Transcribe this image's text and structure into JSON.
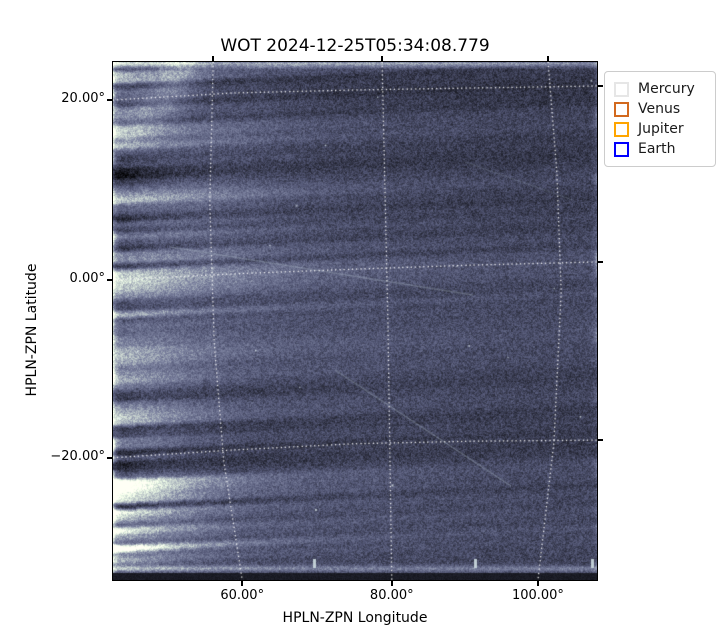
{
  "title": "WOT 2024-12-25T05:34:08.779",
  "chart_data": {
    "type": "heatmap",
    "title": "WOT 2024-12-25T05:34:08.779",
    "xlabel": "HPLN-ZPN Longitude",
    "ylabel": "HPLN-ZPN Latitude",
    "x_tick_labels": [
      "60.00°",
      "80.00°",
      "100.00°"
    ],
    "y_tick_labels": [
      "20.00°",
      "0.00°",
      "−20.00°"
    ],
    "xlim_deg_estimate": [
      43,
      108
    ],
    "ylim_deg_estimate": [
      -33.5,
      24
    ],
    "grid": {
      "color": "#ffffff",
      "style": "dotted",
      "constant_longitude_lines": [
        {
          "value_deg": 60,
          "points": [
            [
              0.207,
              0
            ],
            [
              0.2,
              0.27
            ],
            [
              0.209,
              0.541
            ],
            [
              0.229,
              0.772
            ],
            [
              0.267,
              1
            ]
          ]
        },
        {
          "value_deg": 80,
          "points": [
            [
              0.556,
              0
            ],
            [
              0.562,
              0.251
            ],
            [
              0.568,
              0.502
            ],
            [
              0.572,
              0.753
            ],
            [
              0.576,
              1
            ]
          ]
        },
        {
          "value_deg": 100,
          "points": [
            [
              0.899,
              0
            ],
            [
              0.917,
              0.212
            ],
            [
              0.926,
              0.444
            ],
            [
              0.911,
              0.734
            ],
            [
              0.878,
              1
            ]
          ]
        }
      ],
      "constant_latitude_lines": [
        {
          "value_deg": 20,
          "points": [
            [
              0,
              0.0734
            ],
            [
              0.248,
              0.0598
            ],
            [
              0.496,
              0.0541
            ],
            [
              0.744,
              0.0502
            ],
            [
              1,
              0.0463
            ]
          ]
        },
        {
          "value_deg": 0,
          "points": [
            [
              0,
              0.421
            ],
            [
              0.248,
              0.409
            ],
            [
              0.496,
              0.4
            ],
            [
              0.744,
              0.392
            ],
            [
              1,
              0.386
            ]
          ]
        },
        {
          "value_deg": -20,
          "points": [
            [
              0,
              0.764
            ],
            [
              0.248,
              0.749
            ],
            [
              0.496,
              0.737
            ],
            [
              0.744,
              0.732
            ],
            [
              1,
              0.73
            ]
          ]
        }
      ]
    },
    "ticks": {
      "bottom_x": [
        0.267,
        0.576,
        0.878
      ],
      "top_x": [
        0.207,
        0.556,
        0.899
      ],
      "left_y": [
        0.0734,
        0.421,
        0.764
      ],
      "right_y": [
        0.0463,
        0.386,
        0.73
      ]
    },
    "image": {
      "description": "Noisy dark slate-blue heliospheric imager frame (bone-like colormap) with white dotted curved HPLN-ZPN coordinate grid",
      "base_color": "#3f4259",
      "midtone_color": "#7d87a0",
      "highlight_color": "#d9e6e3",
      "features": [
        "bright arc in top-left corner",
        "bright haze and horizontal streaks along left side",
        "strong dark/bright streak bands in bottom-left quadrant",
        "thin bright band along top edge",
        "thin bright line above a dark band at bottom edge",
        "faint diagonal streaks through center",
        "scattered bright specks"
      ]
    }
  },
  "legend": {
    "background": "#ffffff",
    "border_color": "#cccccc",
    "entries": [
      {
        "label": "Mercury",
        "marker_color": "#e6e6e6"
      },
      {
        "label": "Venus",
        "marker_color": "#d2691e"
      },
      {
        "label": "Jupiter",
        "marker_color": "#ffa500"
      },
      {
        "label": "Earth",
        "marker_color": "#0000ff"
      }
    ]
  }
}
